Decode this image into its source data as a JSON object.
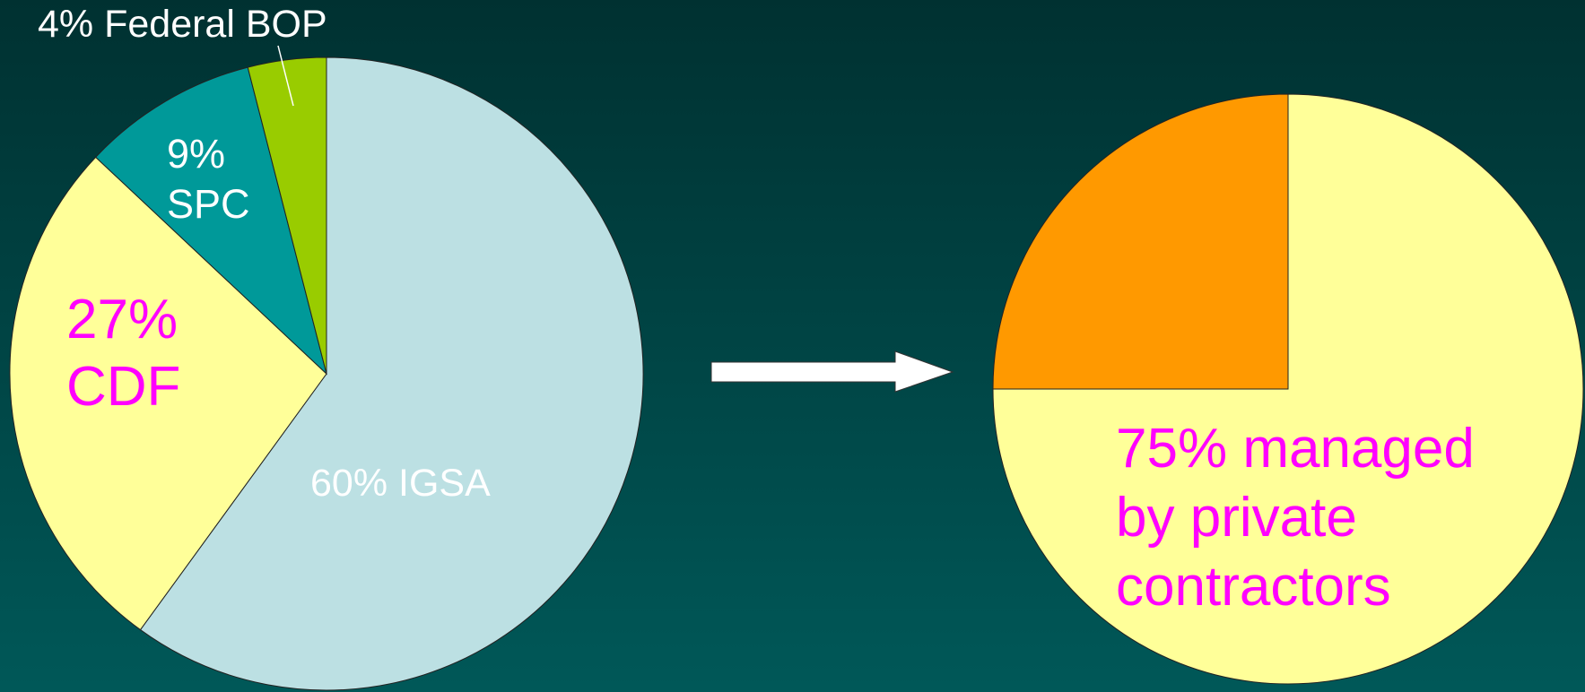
{
  "chart_data": [
    {
      "type": "pie",
      "values": [
        60,
        27,
        9,
        4
      ],
      "value_labels": [
        "60% IGSA",
        "27%\nCDF",
        "9%\nSPC",
        "4% Federal BOP"
      ],
      "colors": [
        "#bce0e3",
        "#ffff99",
        "#009999",
        "#99cc00"
      ],
      "label_colors": [
        "#ffffff",
        "#ff00ff",
        "#ffffff",
        "#ffffff"
      ]
    },
    {
      "type": "pie",
      "values": [
        75,
        25
      ],
      "value_labels": [
        "75% managed\nby private\ncontractors",
        null
      ],
      "colors": [
        "#ffff99",
        "#ff9900"
      ],
      "label_colors": [
        "#ff00ff",
        null
      ]
    }
  ]
}
